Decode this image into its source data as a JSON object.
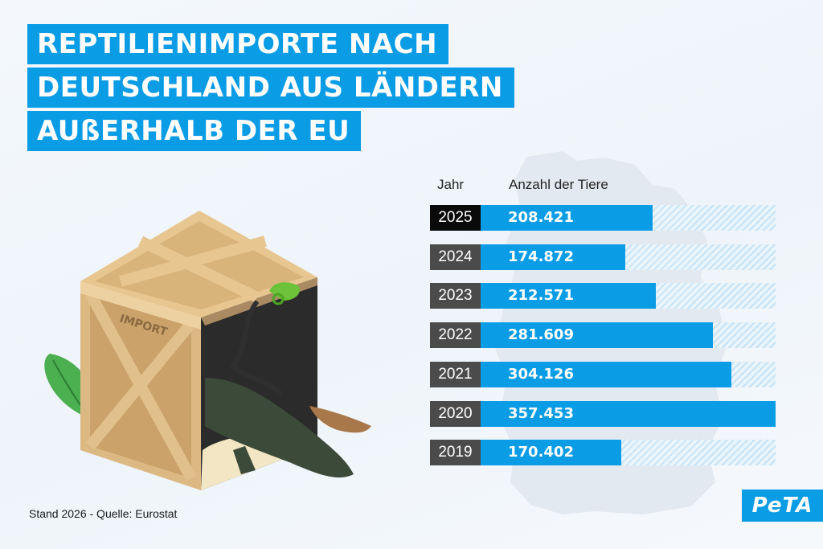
{
  "title_lines": [
    "REPTILIENIMPORTE NACH",
    "DEUTSCHLAND AUS LÄNDERN",
    "AUßERHALB DER EU"
  ],
  "crate_label": "IMPORT",
  "source": "Stand 2026 - Quelle: Eurostat",
  "logo": "PeTA",
  "colors": {
    "accent": "#0b9ce6",
    "year_box": "#4b4b4b",
    "year_box_current": "#0a0a0a"
  },
  "chart_data": {
    "type": "bar",
    "orientation": "horizontal",
    "column_headers": {
      "category": "Jahr",
      "value": "Anzahl der Tiere"
    },
    "categories": [
      "2025",
      "2024",
      "2023",
      "2022",
      "2021",
      "2020",
      "2019"
    ],
    "values": [
      208421,
      174872,
      212571,
      281609,
      304126,
      357453,
      170402
    ],
    "value_labels": [
      "208.421",
      "174.872",
      "212.571",
      "281.609",
      "304.126",
      "357.453",
      "170.402"
    ],
    "xlim": [
      0,
      357453
    ],
    "highlight_category": "2025",
    "grid": false
  }
}
